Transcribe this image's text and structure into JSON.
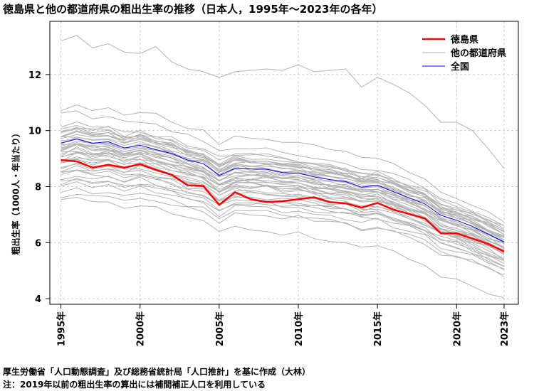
{
  "chart_data": {
    "type": "line",
    "title": "徳島県と他の都道府県の粗出生率の推移（日本人，1995年～2023年の各年）",
    "xlabel": "",
    "ylabel": "粗出生率（1000人・年当たり）",
    "ylim": [
      3.8,
      13.9
    ],
    "yticks": [
      4,
      6,
      8,
      10,
      12
    ],
    "xticks": [
      1995,
      2000,
      2005,
      2010,
      2015,
      2020,
      2023
    ],
    "xtick_labels": [
      "1995年",
      "2000年",
      "2005年",
      "2010年",
      "2015年",
      "2020年",
      "2023年"
    ],
    "grid": true,
    "legend_position": "top-right",
    "x": [
      1995,
      1996,
      1997,
      1998,
      1999,
      2000,
      2001,
      2002,
      2003,
      2004,
      2005,
      2006,
      2007,
      2008,
      2009,
      2010,
      2011,
      2012,
      2013,
      2014,
      2015,
      2016,
      2017,
      2018,
      2019,
      2020,
      2021,
      2022,
      2023
    ],
    "series": [
      {
        "name": "徳島県",
        "color": "#ff0000",
        "values": [
          8.95,
          8.9,
          8.68,
          8.78,
          8.68,
          8.8,
          8.6,
          8.42,
          8.05,
          8.02,
          7.35,
          7.8,
          7.55,
          7.45,
          7.48,
          7.55,
          7.62,
          7.45,
          7.4,
          7.25,
          7.42,
          7.18,
          7.02,
          6.86,
          6.33,
          6.33,
          6.15,
          5.95,
          5.68
        ]
      },
      {
        "name": "他の都道府県",
        "color": "#b3b3b3",
        "values": [
          13.2,
          13.4,
          12.95,
          13.1,
          12.8,
          12.75,
          13.0,
          12.45,
          12.2,
          12.1,
          11.9,
          12.1,
          12.15,
          12.2,
          12.15,
          12.35,
          12.1,
          12.15,
          12.2,
          11.55,
          11.9,
          11.65,
          11.35,
          10.9,
          10.3,
          10.3,
          10.0,
          9.35,
          8.65
        ]
      },
      {
        "name": "全国",
        "color": "#0000ff",
        "values": [
          9.55,
          9.7,
          9.55,
          9.6,
          9.38,
          9.48,
          9.32,
          9.18,
          8.95,
          8.82,
          8.4,
          8.65,
          8.63,
          8.62,
          8.5,
          8.48,
          8.35,
          8.25,
          8.18,
          7.98,
          8.05,
          7.82,
          7.6,
          7.38,
          6.98,
          6.8,
          6.58,
          6.3,
          6.02
        ]
      }
    ],
    "other_prefecture_lines": {
      "color": "#b3b3b3",
      "endpoints_1995": [
        10.8,
        10.55,
        10.2,
        10.05,
        10.0,
        9.95,
        9.9,
        9.85,
        9.8,
        9.75,
        9.7,
        9.65,
        9.6,
        9.55,
        9.5,
        9.45,
        9.42,
        9.38,
        9.35,
        9.32,
        9.28,
        9.25,
        9.22,
        9.18,
        9.15,
        9.1,
        9.05,
        9.0,
        8.95,
        8.9,
        8.85,
        8.8,
        8.72,
        8.65,
        8.58,
        8.5,
        8.42,
        8.35,
        8.25,
        8.15,
        8.05,
        7.95,
        7.8,
        7.65,
        7.5
      ],
      "endpoints_2023": [
        6.7,
        6.6,
        6.55,
        6.5,
        6.45,
        6.42,
        6.38,
        6.35,
        6.32,
        6.28,
        6.25,
        6.22,
        6.18,
        6.15,
        6.12,
        6.08,
        6.05,
        6.02,
        5.98,
        5.95,
        5.92,
        5.88,
        5.85,
        5.82,
        5.78,
        5.75,
        5.72,
        5.68,
        5.65,
        5.62,
        5.58,
        5.55,
        5.5,
        5.45,
        5.4,
        5.35,
        5.3,
        5.25,
        5.18,
        5.12,
        5.05,
        4.98,
        4.9,
        4.82,
        3.95
      ]
    }
  },
  "legend": {
    "items": [
      {
        "label": "徳島県",
        "color": "#ff0000"
      },
      {
        "label": "他の都道府県",
        "color": "#b3b3b3"
      },
      {
        "label": "全国",
        "color": "#0000ff"
      }
    ]
  },
  "footer": {
    "line1": "厚生労働省「人口動態調査」及び総務省統計局「人口推計」を基に作成（大林）",
    "line2": "注：2019年以前の粗出生率の算出には補間補正人口を利用している"
  }
}
